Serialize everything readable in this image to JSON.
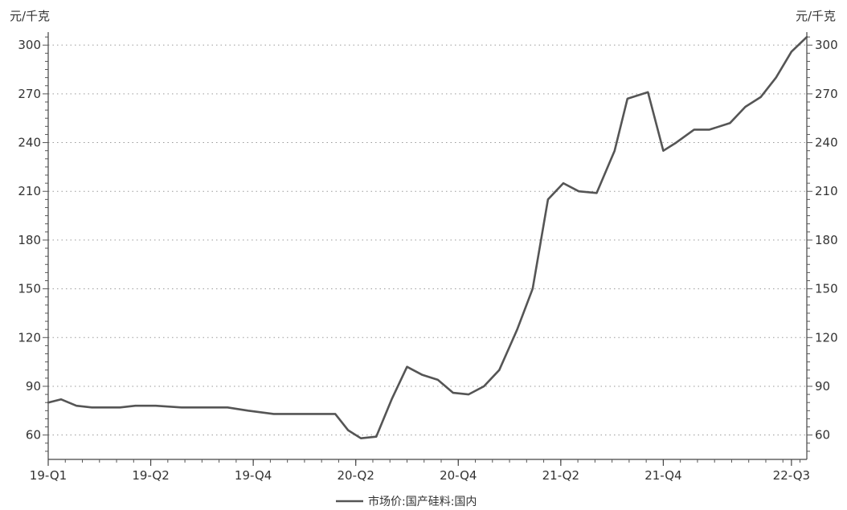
{
  "chart_data": {
    "type": "line",
    "title": "",
    "ylabel_left": "元/千克",
    "ylabel_right": "元/千克",
    "ylim": [
      45,
      308
    ],
    "yticks": [
      60,
      90,
      120,
      150,
      180,
      210,
      240,
      270,
      300
    ],
    "xlim": [
      0,
      14.8
    ],
    "xticks": [
      {
        "label": "19-Q1",
        "x": 0
      },
      {
        "label": "19-Q2",
        "x": 2
      },
      {
        "label": "19-Q4",
        "x": 4
      },
      {
        "label": "20-Q2",
        "x": 6
      },
      {
        "label": "20-Q4",
        "x": 8
      },
      {
        "label": "21-Q2",
        "x": 10
      },
      {
        "label": "21-Q4",
        "x": 12
      },
      {
        "label": "22-Q3",
        "x": 14.5
      }
    ],
    "grid": "horizontal-dotted",
    "legend_position": "bottom-center",
    "series": [
      {
        "name": "市场价:国产硅料:国内",
        "color": "#555555",
        "x": [
          0,
          0.25,
          0.55,
          0.85,
          1.4,
          1.7,
          2.1,
          2.6,
          3.0,
          3.5,
          3.9,
          4.4,
          4.8,
          5.3,
          5.6,
          5.85,
          6.1,
          6.4,
          6.7,
          7.0,
          7.3,
          7.6,
          7.9,
          8.2,
          8.5,
          8.8,
          9.15,
          9.45,
          9.75,
          10.05,
          10.35,
          10.7,
          11.05,
          11.3,
          11.7,
          12.0,
          12.25,
          12.6,
          12.9,
          13.3,
          13.6,
          13.9,
          14.2,
          14.5,
          14.8
        ],
        "y": [
          80,
          82,
          78,
          77,
          77,
          78,
          78,
          77,
          77,
          77,
          75,
          73,
          73,
          73,
          73,
          63,
          58,
          59,
          82,
          102,
          97,
          94,
          86,
          85,
          90,
          100,
          125,
          150,
          205,
          215,
          210,
          209,
          235,
          267,
          271,
          235,
          240,
          248,
          248,
          252,
          262,
          268,
          280,
          296,
          305
        ]
      }
    ]
  }
}
